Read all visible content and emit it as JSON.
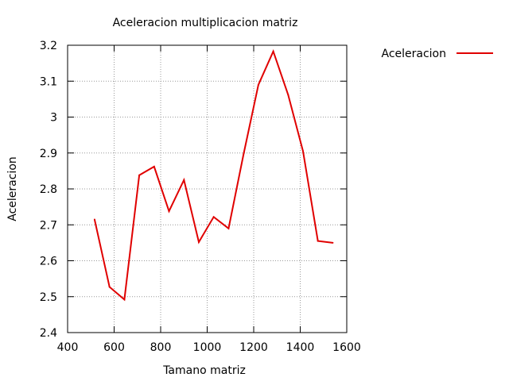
{
  "chart_data": {
    "type": "line",
    "title": "Aceleracion multiplicacion matriz",
    "xlabel": "Tamano matriz",
    "ylabel": "Aceleracion",
    "xlim": [
      400,
      1600
    ],
    "ylim": [
      2.4,
      3.2
    ],
    "x_ticks": [
      "400",
      "600",
      "800",
      "1000",
      "1200",
      "1400",
      "1600"
    ],
    "y_ticks": [
      "2.4",
      "2.5",
      "2.6",
      "2.7",
      "2.8",
      "2.9",
      "3",
      "3.1",
      "3.2"
    ],
    "grid": true,
    "legend_position": "top-right outside",
    "series": [
      {
        "name": "Aceleracion",
        "color": "#e00000",
        "x": [
          516,
          580,
          644,
          708,
          772,
          836,
          900,
          964,
          1028,
          1092,
          1156,
          1220,
          1284,
          1348,
          1412,
          1476,
          1540
        ],
        "y": [
          2.715,
          2.527,
          2.492,
          2.838,
          2.862,
          2.738,
          2.825,
          2.652,
          2.722,
          2.69,
          2.895,
          3.09,
          3.183,
          3.062,
          2.905,
          2.655,
          2.65
        ]
      }
    ]
  }
}
